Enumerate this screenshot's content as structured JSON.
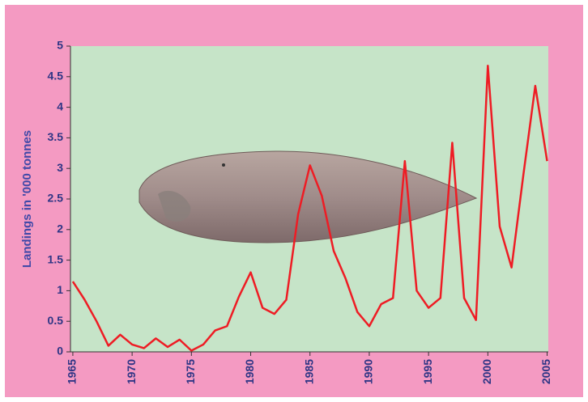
{
  "chart_data": {
    "type": "line",
    "y_label": "Landings in '000 tonnes",
    "x": [
      1965,
      1966,
      1967,
      1968,
      1969,
      1970,
      1971,
      1972,
      1973,
      1974,
      1975,
      1976,
      1977,
      1978,
      1979,
      1980,
      1981,
      1982,
      1983,
      1984,
      1985,
      1986,
      1987,
      1988,
      1989,
      1990,
      1991,
      1992,
      1993,
      1994,
      1995,
      1996,
      1997,
      1998,
      1999,
      2000,
      2001,
      2002,
      2003,
      2004,
      2005
    ],
    "series": [
      {
        "color": "#ee1c24",
        "values": [
          1.15,
          0.85,
          0.5,
          0.1,
          0.28,
          0.12,
          0.06,
          0.22,
          0.08,
          0.2,
          0.02,
          0.12,
          0.35,
          0.42,
          0.9,
          1.3,
          0.72,
          0.62,
          0.85,
          2.25,
          3.05,
          2.55,
          1.65,
          1.2,
          0.65,
          0.42,
          0.78,
          0.88,
          3.12,
          1.0,
          0.72,
          0.88,
          3.42,
          0.88,
          0.52,
          4.68,
          2.05,
          1.38,
          2.9,
          4.35,
          3.12
        ]
      }
    ],
    "xlim": [
      1964.8,
      2005.1
    ],
    "xticks": [
      1965,
      1970,
      1975,
      1980,
      1985,
      1990,
      1995,
      2000,
      2005
    ],
    "ylim": [
      0,
      5
    ],
    "yticks": [
      0,
      0.5,
      1,
      1.5,
      2,
      2.5,
      3,
      3.5,
      4,
      4.5,
      5
    ]
  }
}
